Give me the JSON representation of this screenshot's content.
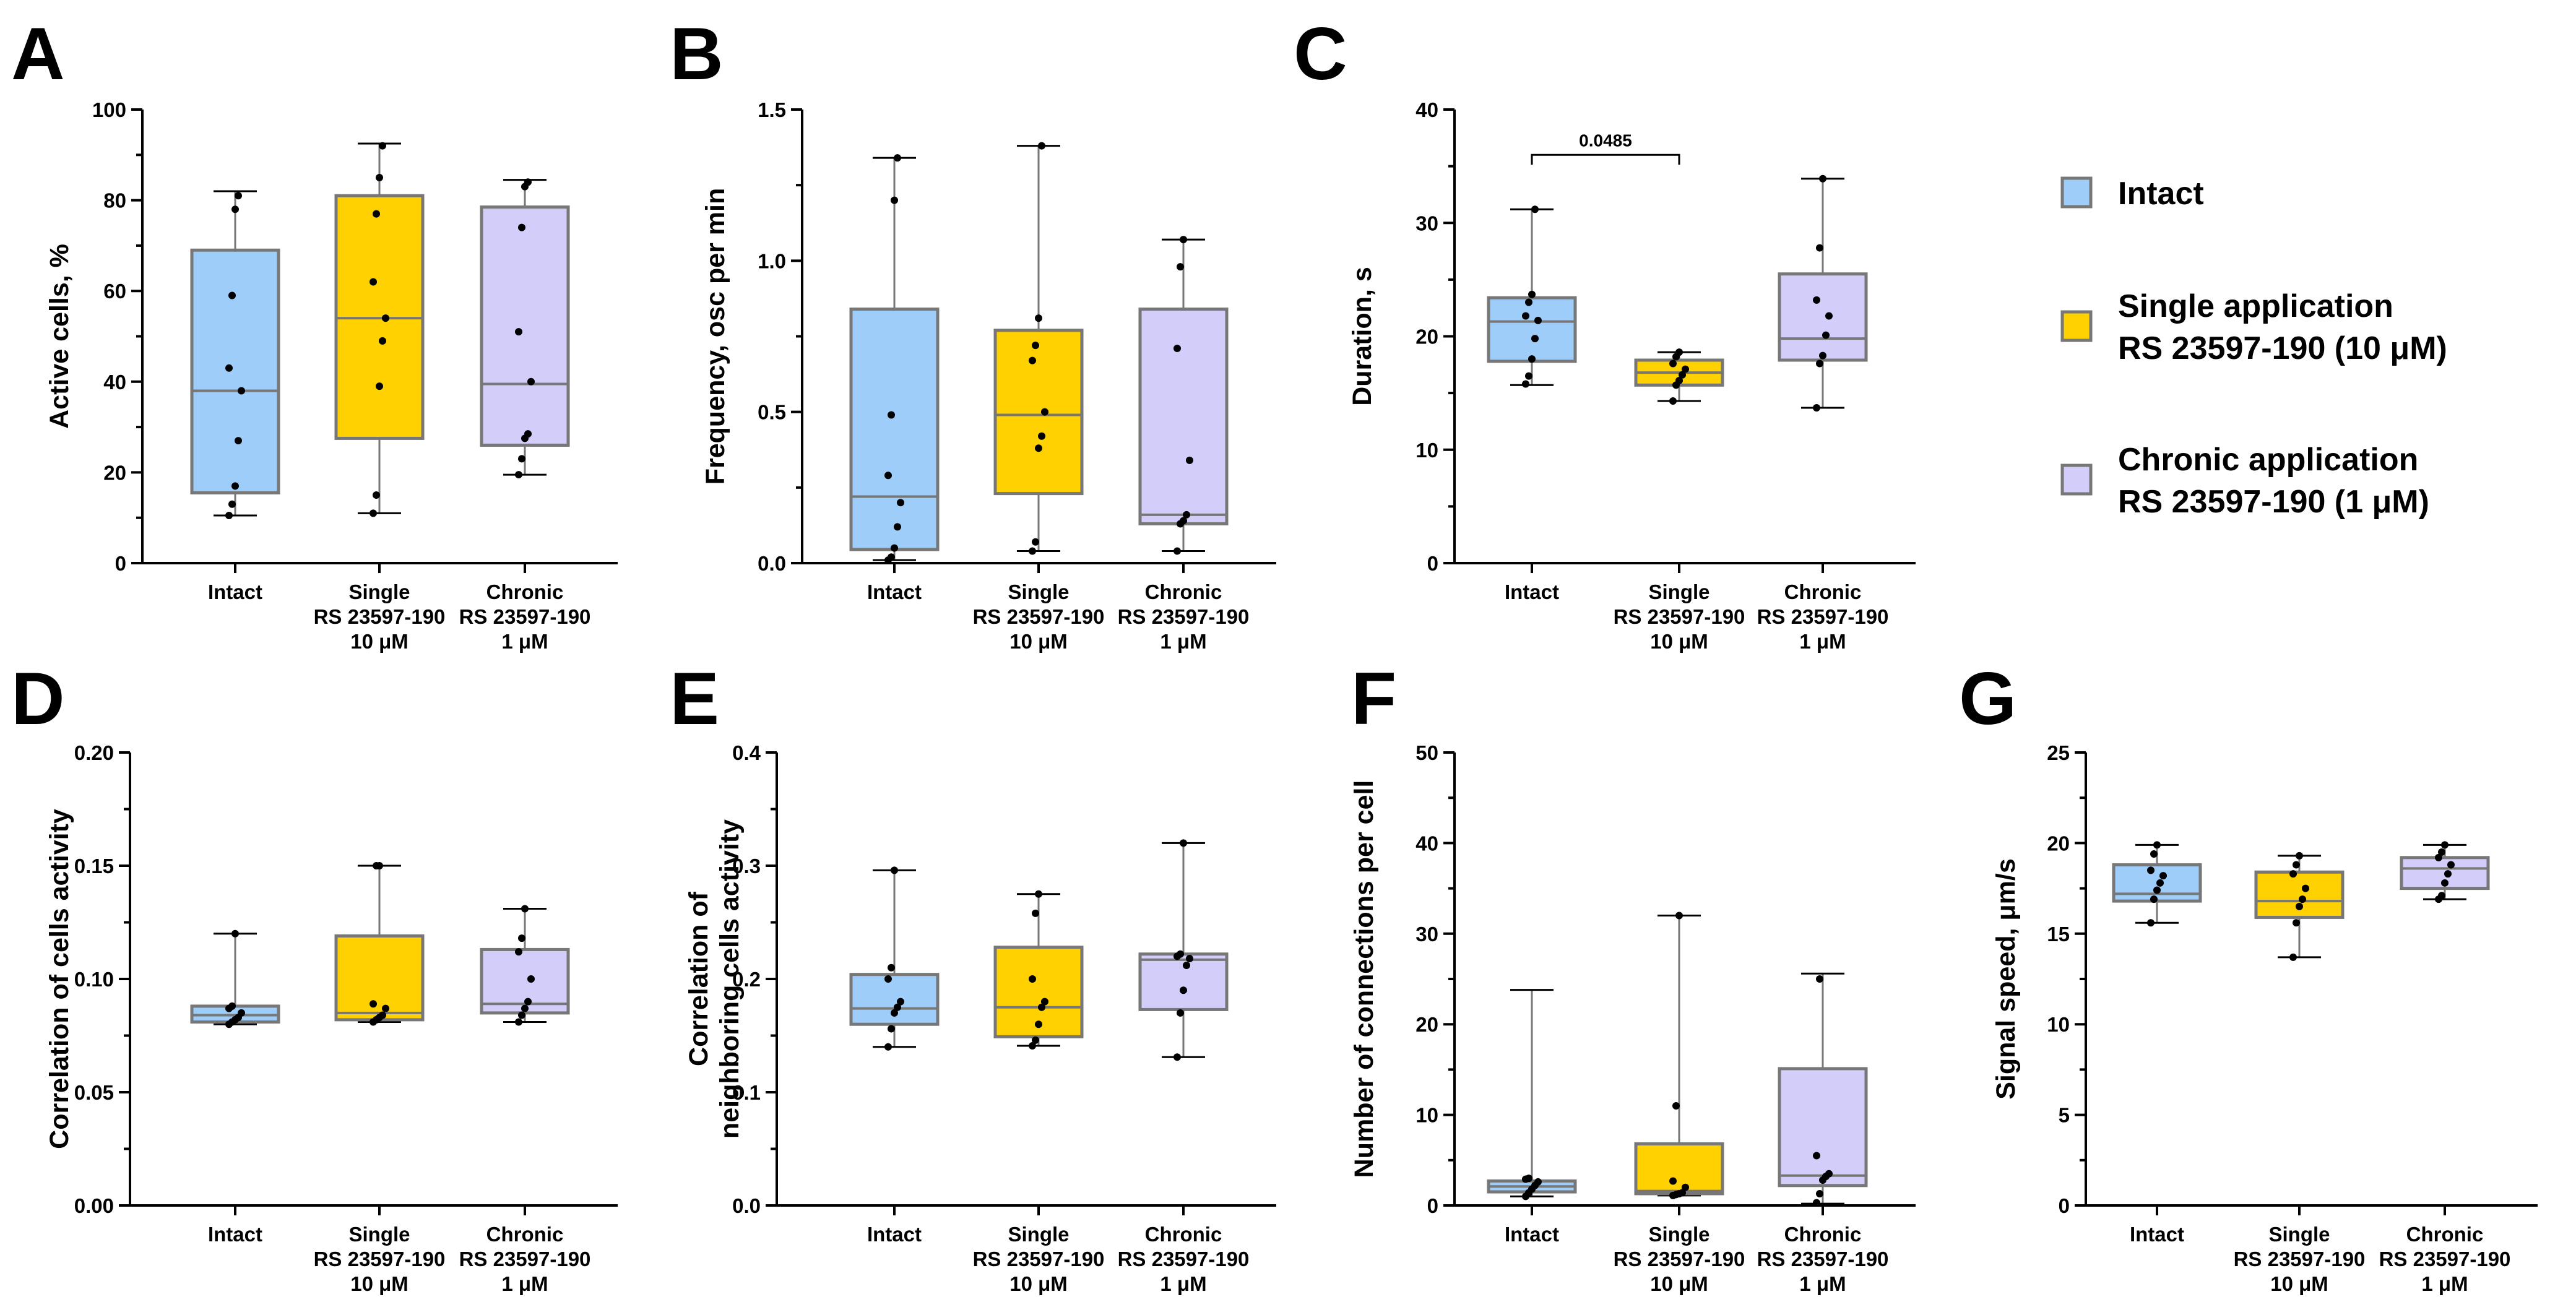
{
  "colors": {
    "intact": "#9dcdf8",
    "single": "#ffd100",
    "chronic": "#d3cdfa",
    "edge": "#777777",
    "point": "#000000"
  },
  "legend": [
    {
      "group": "intact",
      "lines": [
        "Intact"
      ]
    },
    {
      "group": "single",
      "lines": [
        "Single application",
        "RS 23597-190 (10 μM)"
      ]
    },
    {
      "group": "chronic",
      "lines": [
        "Chronic application",
        "RS 23597-190 (1 μM)"
      ]
    }
  ],
  "categories": [
    {
      "group": "intact",
      "lines": [
        "Intact"
      ]
    },
    {
      "group": "single",
      "lines": [
        "Single",
        "RS 23597-190",
        "10 μM"
      ]
    },
    {
      "group": "chronic",
      "lines": [
        "Chronic",
        "RS 23597-190",
        "1 μM"
      ]
    }
  ],
  "chart_data": [
    {
      "letter": "A",
      "type": "box",
      "ylabel": [
        "Active cells, %"
      ],
      "ylim": [
        0,
        100
      ],
      "yticks": [
        "0",
        "20",
        "40",
        "60",
        "80",
        "100"
      ],
      "boxes": [
        {
          "group": "intact",
          "min": 10.5,
          "q1": 15.5,
          "median": 38,
          "q3": 69,
          "max": 82,
          "points": [
            10.5,
            13,
            17,
            27,
            38,
            43,
            59,
            78,
            81
          ]
        },
        {
          "group": "single",
          "min": 11,
          "q1": 27.5,
          "median": 54,
          "q3": 81,
          "max": 92.5,
          "points": [
            11,
            15,
            39,
            49,
            54,
            62,
            77,
            85,
            92
          ]
        },
        {
          "group": "chronic",
          "min": 19.5,
          "q1": 26,
          "median": 39.5,
          "q3": 78.5,
          "max": 84.5,
          "points": [
            19.5,
            23,
            27.5,
            28.5,
            40,
            51,
            74,
            83,
            84
          ]
        }
      ]
    },
    {
      "letter": "B",
      "type": "box",
      "ylabel": [
        "Frequency, osc per min"
      ],
      "ylim": [
        0,
        1.5
      ],
      "yticks": [
        "0.0",
        "0.5",
        "1.0",
        "1.5"
      ],
      "boxes": [
        {
          "group": "intact",
          "min": 0.01,
          "q1": 0.045,
          "median": 0.22,
          "q3": 0.84,
          "max": 1.34,
          "points": [
            0.01,
            0.02,
            0.05,
            0.12,
            0.2,
            0.29,
            0.49,
            1.2,
            1.34
          ]
        },
        {
          "group": "single",
          "min": 0.04,
          "q1": 0.23,
          "median": 0.49,
          "q3": 0.77,
          "max": 1.38,
          "points": [
            0.04,
            0.07,
            0.38,
            0.42,
            0.5,
            0.67,
            0.72,
            0.81,
            1.38
          ]
        },
        {
          "group": "chronic",
          "min": 0.04,
          "q1": 0.13,
          "median": 0.16,
          "q3": 0.84,
          "max": 1.07,
          "points": [
            0.04,
            0.13,
            0.14,
            0.16,
            0.34,
            0.71,
            0.98,
            1.07
          ]
        }
      ]
    },
    {
      "letter": "C",
      "type": "box",
      "ylabel": [
        "Duration, s"
      ],
      "ylim": [
        0,
        40
      ],
      "yticks": [
        "0",
        "10",
        "20",
        "30",
        "40"
      ],
      "significance": {
        "from": 0,
        "to": 1,
        "y": 36,
        "label": "0.0485"
      },
      "boxes": [
        {
          "group": "intact",
          "min": 15.7,
          "q1": 17.8,
          "median": 21.3,
          "q3": 23.4,
          "max": 31.2,
          "points": [
            15.8,
            16.5,
            18,
            19.8,
            21.4,
            21.8,
            23,
            23.7,
            31.2
          ]
        },
        {
          "group": "single",
          "min": 14.3,
          "q1": 15.7,
          "median": 16.8,
          "q3": 17.9,
          "max": 18.6,
          "points": [
            14.3,
            15.7,
            16.1,
            16.6,
            17.1,
            17.6,
            18.2,
            18.6
          ]
        },
        {
          "group": "chronic",
          "min": 13.7,
          "q1": 17.9,
          "median": 19.8,
          "q3": 25.5,
          "max": 33.9,
          "points": [
            13.7,
            17.6,
            18.3,
            20.1,
            21.8,
            23.2,
            27.8,
            33.9
          ]
        }
      ]
    },
    {
      "letter": "D",
      "type": "box",
      "ylabel": [
        "Correlation of cells activity"
      ],
      "ylim": [
        0,
        0.2
      ],
      "yticks": [
        "0.00",
        "0.05",
        "0.10",
        "0.15",
        "0.20"
      ],
      "boxes": [
        {
          "group": "intact",
          "min": 0.08,
          "q1": 0.081,
          "median": 0.084,
          "q3": 0.088,
          "max": 0.12,
          "points": [
            0.08,
            0.081,
            0.082,
            0.083,
            0.085,
            0.087,
            0.088,
            0.12
          ]
        },
        {
          "group": "single",
          "min": 0.081,
          "q1": 0.082,
          "median": 0.085,
          "q3": 0.119,
          "max": 0.15,
          "points": [
            0.081,
            0.082,
            0.083,
            0.084,
            0.087,
            0.089,
            0.15,
            0.15
          ]
        },
        {
          "group": "chronic",
          "min": 0.081,
          "q1": 0.085,
          "median": 0.089,
          "q3": 0.113,
          "max": 0.131,
          "points": [
            0.081,
            0.084,
            0.087,
            0.09,
            0.1,
            0.112,
            0.118,
            0.131
          ]
        }
      ]
    },
    {
      "letter": "E",
      "type": "box",
      "ylabel": [
        "Correlation of",
        "neighboring cells activity"
      ],
      "ylim": [
        0,
        0.4
      ],
      "yticks": [
        "0.0",
        "0.1",
        "0.2",
        "0.3",
        "0.4"
      ],
      "boxes": [
        {
          "group": "intact",
          "min": 0.14,
          "q1": 0.16,
          "median": 0.174,
          "q3": 0.204,
          "max": 0.296,
          "points": [
            0.14,
            0.156,
            0.17,
            0.175,
            0.18,
            0.2,
            0.21,
            0.296
          ]
        },
        {
          "group": "single",
          "min": 0.141,
          "q1": 0.149,
          "median": 0.175,
          "q3": 0.228,
          "max": 0.275,
          "points": [
            0.141,
            0.146,
            0.16,
            0.175,
            0.18,
            0.2,
            0.258,
            0.275
          ]
        },
        {
          "group": "chronic",
          "min": 0.131,
          "q1": 0.173,
          "median": 0.217,
          "q3": 0.222,
          "max": 0.32,
          "points": [
            0.131,
            0.17,
            0.19,
            0.212,
            0.218,
            0.22,
            0.222,
            0.32
          ]
        }
      ]
    },
    {
      "letter": "F",
      "type": "box",
      "ylabel": [
        "Number of connections per cell"
      ],
      "ylim": [
        0,
        50
      ],
      "yticks": [
        "0",
        "10",
        "20",
        "30",
        "40",
        "50"
      ],
      "boxes": [
        {
          "group": "intact",
          "min": 1,
          "q1": 1.5,
          "median": 2.1,
          "q3": 2.7,
          "max": 23.8,
          "points": [
            1,
            1.4,
            1.8,
            2.2,
            2.6,
            2.9,
            3
          ]
        },
        {
          "group": "single",
          "min": 1.1,
          "q1": 1.3,
          "median": 1.6,
          "q3": 6.8,
          "max": 32,
          "points": [
            1.1,
            1.2,
            1.3,
            1.4,
            2,
            2.7,
            11,
            32
          ]
        },
        {
          "group": "chronic",
          "min": 0.2,
          "q1": 2.2,
          "median": 3.3,
          "q3": 15.1,
          "max": 25.6,
          "points": [
            0.3,
            1.3,
            2.8,
            3.2,
            3.5,
            5.5,
            25
          ]
        }
      ]
    },
    {
      "letter": "G",
      "type": "box",
      "ylabel": [
        "Signal speed, μm/s"
      ],
      "ylim": [
        0,
        25
      ],
      "yticks": [
        "0",
        "5",
        "10",
        "15",
        "20",
        "25"
      ],
      "boxes": [
        {
          "group": "intact",
          "min": 15.6,
          "q1": 16.8,
          "median": 17.2,
          "q3": 18.8,
          "max": 19.9,
          "points": [
            15.6,
            16.9,
            17.4,
            17.8,
            18.2,
            18.5,
            19.4,
            19.9
          ]
        },
        {
          "group": "single",
          "min": 13.7,
          "q1": 15.9,
          "median": 16.8,
          "q3": 18.4,
          "max": 19.3,
          "points": [
            13.7,
            15.6,
            16.5,
            16.9,
            17.5,
            18.3,
            18.8,
            19.3
          ]
        },
        {
          "group": "chronic",
          "min": 16.9,
          "q1": 17.5,
          "median": 18.6,
          "q3": 19.2,
          "max": 19.9,
          "points": [
            16.9,
            17.1,
            17.8,
            18.3,
            18.8,
            19.2,
            19.5,
            19.9
          ]
        }
      ]
    }
  ]
}
